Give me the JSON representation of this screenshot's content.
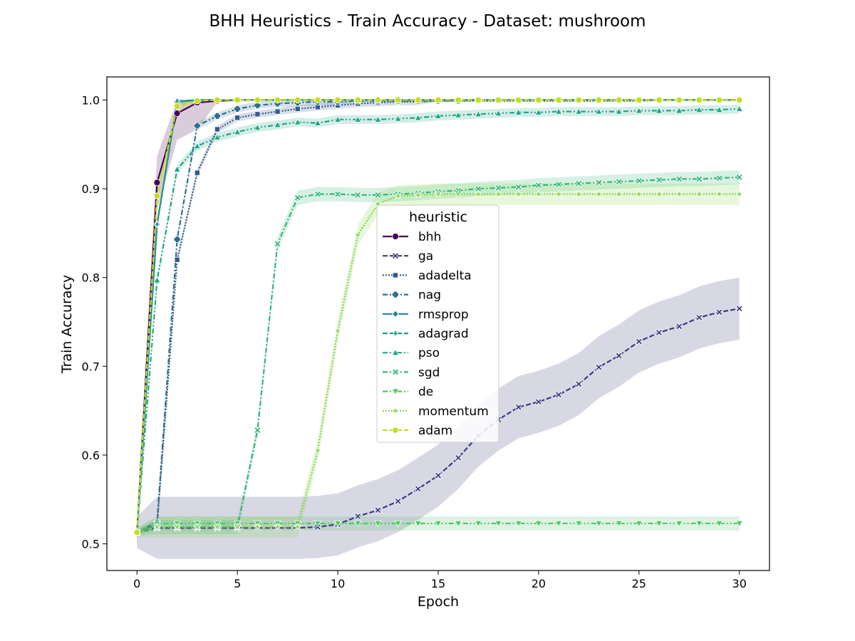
{
  "chart_data": {
    "type": "line",
    "title": "BHH Heuristics - Train Accuracy - Dataset: mushroom",
    "xlabel": "Epoch",
    "ylabel": "Train Accuracy",
    "xlim": [
      -1.5,
      31.5
    ],
    "ylim": [
      0.47,
      1.026
    ],
    "xticks": [
      0,
      5,
      10,
      15,
      20,
      25,
      30
    ],
    "xtick_labels": [
      "0",
      "5",
      "10",
      "15",
      "20",
      "25",
      "30"
    ],
    "yticks": [
      0.5,
      0.6,
      0.7,
      0.8,
      0.9,
      1.0
    ],
    "ytick_labels": [
      "0.5",
      "0.6",
      "0.7",
      "0.8",
      "0.9",
      "1.0"
    ],
    "grid": false,
    "legend": {
      "title": "heuristic",
      "placement": "center"
    },
    "x": [
      0,
      1,
      2,
      3,
      4,
      5,
      6,
      7,
      8,
      9,
      10,
      11,
      12,
      13,
      14,
      15,
      16,
      17,
      18,
      19,
      20,
      21,
      22,
      23,
      24,
      25,
      26,
      27,
      28,
      29,
      30
    ],
    "series": [
      {
        "name": "bhh",
        "color": "#440154",
        "dash": "solid",
        "marker": "circle",
        "values": [
          0.513,
          0.907,
          0.985,
          0.997,
          0.999,
          1.0,
          1.0,
          1.0,
          1.0,
          1.0,
          1.0,
          1.0,
          1.0,
          1.0,
          1.0,
          1.0,
          1.0,
          1.0,
          1.0,
          1.0,
          1.0,
          1.0,
          1.0,
          1.0,
          1.0,
          1.0,
          1.0,
          1.0,
          1.0,
          1.0,
          1.0
        ],
        "ci": 0.03
      },
      {
        "name": "ga",
        "color": "#3b3a7e",
        "dash": "dashed",
        "marker": "x",
        "values": [
          0.513,
          0.518,
          0.518,
          0.518,
          0.518,
          0.518,
          0.518,
          0.518,
          0.518,
          0.519,
          0.522,
          0.531,
          0.538,
          0.548,
          0.562,
          0.577,
          0.597,
          0.622,
          0.64,
          0.654,
          0.66,
          0.668,
          0.68,
          0.699,
          0.712,
          0.728,
          0.738,
          0.745,
          0.755,
          0.761,
          0.765
        ],
        "ci": 0.035
      },
      {
        "name": "adadelta",
        "color": "#345a8c",
        "dash": "dotted",
        "marker": "square",
        "values": [
          0.513,
          0.521,
          0.82,
          0.918,
          0.967,
          0.98,
          0.984,
          0.987,
          0.99,
          0.992,
          0.994,
          0.996,
          0.997,
          0.998,
          0.998,
          0.999,
          0.999,
          0.999,
          0.999,
          0.999,
          0.999,
          0.999,
          0.999,
          0.999,
          0.999,
          0.999,
          1.0,
          1.0,
          1.0,
          1.0,
          1.0
        ],
        "ci": 0.004
      },
      {
        "name": "nag",
        "color": "#2d6e8e",
        "dash": "dashdot",
        "marker": "plus",
        "values": [
          0.513,
          0.524,
          0.843,
          0.971,
          0.982,
          0.99,
          0.994,
          0.996,
          0.997,
          0.998,
          0.998,
          0.999,
          0.999,
          0.999,
          0.999,
          0.999,
          0.999,
          1.0,
          1.0,
          1.0,
          1.0,
          1.0,
          1.0,
          1.0,
          1.0,
          1.0,
          1.0,
          1.0,
          1.0,
          1.0,
          1.0
        ],
        "ci": 0.004
      },
      {
        "name": "rmsprop",
        "color": "#24868e",
        "dash": "solid",
        "marker": "diamond",
        "values": [
          0.513,
          0.86,
          0.998,
          1.0,
          1.0,
          1.0,
          1.0,
          1.0,
          1.0,
          1.0,
          1.0,
          1.0,
          1.0,
          1.0,
          1.0,
          1.0,
          1.0,
          1.0,
          1.0,
          1.0,
          1.0,
          1.0,
          1.0,
          1.0,
          1.0,
          1.0,
          1.0,
          1.0,
          1.0,
          1.0,
          1.0
        ],
        "ci": 0.004
      },
      {
        "name": "adagrad",
        "color": "#1f9a8a",
        "dash": "dashed",
        "marker": "thin-diamond",
        "values": [
          0.513,
          0.86,
          0.999,
          1.0,
          1.0,
          1.0,
          1.0,
          1.0,
          1.0,
          1.0,
          1.0,
          1.0,
          1.0,
          1.0,
          1.0,
          1.0,
          1.0,
          1.0,
          1.0,
          1.0,
          1.0,
          1.0,
          1.0,
          1.0,
          1.0,
          1.0,
          1.0,
          1.0,
          1.0,
          1.0,
          1.0
        ],
        "ci": 0.004
      },
      {
        "name": "pso",
        "color": "#21a685",
        "dash": "dashdotdot",
        "marker": "triangle-up",
        "values": [
          0.513,
          0.797,
          0.922,
          0.948,
          0.958,
          0.964,
          0.969,
          0.972,
          0.975,
          0.974,
          0.978,
          0.978,
          0.978,
          0.979,
          0.98,
          0.982,
          0.983,
          0.984,
          0.985,
          0.986,
          0.986,
          0.987,
          0.987,
          0.987,
          0.987,
          0.988,
          0.988,
          0.988,
          0.989,
          0.989,
          0.99
        ],
        "ci": 0.005
      },
      {
        "name": "sgd",
        "color": "#34b679",
        "dash": "dashdot",
        "marker": "x",
        "values": [
          0.513,
          0.519,
          0.519,
          0.519,
          0.519,
          0.519,
          0.628,
          0.838,
          0.89,
          0.894,
          0.894,
          0.893,
          0.893,
          0.894,
          0.895,
          0.897,
          0.898,
          0.9,
          0.901,
          0.902,
          0.904,
          0.905,
          0.906,
          0.907,
          0.908,
          0.909,
          0.91,
          0.911,
          0.911,
          0.912,
          0.913
        ],
        "ci": 0.008
      },
      {
        "name": "de",
        "color": "#54c568",
        "dash": "dashdotdot",
        "marker": "triangle-down",
        "values": [
          0.513,
          0.523,
          0.523,
          0.523,
          0.523,
          0.523,
          0.523,
          0.523,
          0.523,
          0.523,
          0.523,
          0.523,
          0.523,
          0.523,
          0.523,
          0.523,
          0.523,
          0.523,
          0.523,
          0.523,
          0.523,
          0.523,
          0.523,
          0.523,
          0.523,
          0.523,
          0.523,
          0.523,
          0.523,
          0.523,
          0.523
        ],
        "ci": 0.008
      },
      {
        "name": "momentum",
        "color": "#85d54a",
        "dash": "dotted",
        "marker": "star",
        "values": [
          0.513,
          0.519,
          0.519,
          0.519,
          0.519,
          0.519,
          0.519,
          0.519,
          0.519,
          0.605,
          0.74,
          0.848,
          0.883,
          0.892,
          0.893,
          0.894,
          0.894,
          0.894,
          0.894,
          0.894,
          0.894,
          0.894,
          0.894,
          0.894,
          0.894,
          0.894,
          0.894,
          0.894,
          0.894,
          0.894,
          0.894
        ],
        "ci": 0.012
      },
      {
        "name": "adam",
        "color": "#c2df23",
        "dash": "dashed",
        "marker": "octagon",
        "values": [
          0.513,
          0.892,
          0.993,
          0.999,
          1.0,
          1.0,
          1.0,
          1.0,
          1.0,
          1.0,
          1.0,
          1.0,
          1.0,
          1.0,
          1.0,
          1.0,
          1.0,
          1.0,
          1.0,
          1.0,
          1.0,
          1.0,
          1.0,
          1.0,
          1.0,
          1.0,
          1.0,
          1.0,
          1.0,
          1.0,
          1.0
        ],
        "ci": 0.01
      }
    ]
  }
}
